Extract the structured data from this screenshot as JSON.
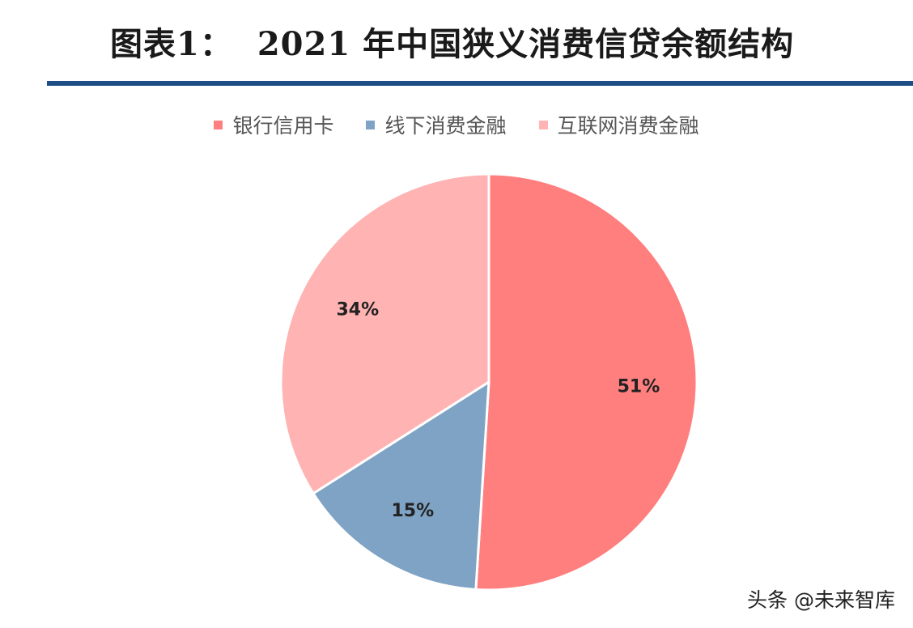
{
  "header": {
    "title_prefix": "图表1：",
    "title_main": "2021 年中国狭义消费信贷余额结构"
  },
  "chart_data": {
    "type": "pie",
    "categories": [
      "银行信用卡",
      "线下消费金融",
      "互联网消费金融"
    ],
    "values": [
      51,
      15,
      34
    ],
    "value_labels": [
      "51%",
      "15%",
      "34%"
    ],
    "colors": [
      "#ff7f7f",
      "#7fa3c4",
      "#ffb3b3"
    ],
    "start_angle_deg": 0,
    "direction": "clockwise",
    "legend_position": "top"
  },
  "watermark": {
    "text": "头条 @未来智库"
  }
}
